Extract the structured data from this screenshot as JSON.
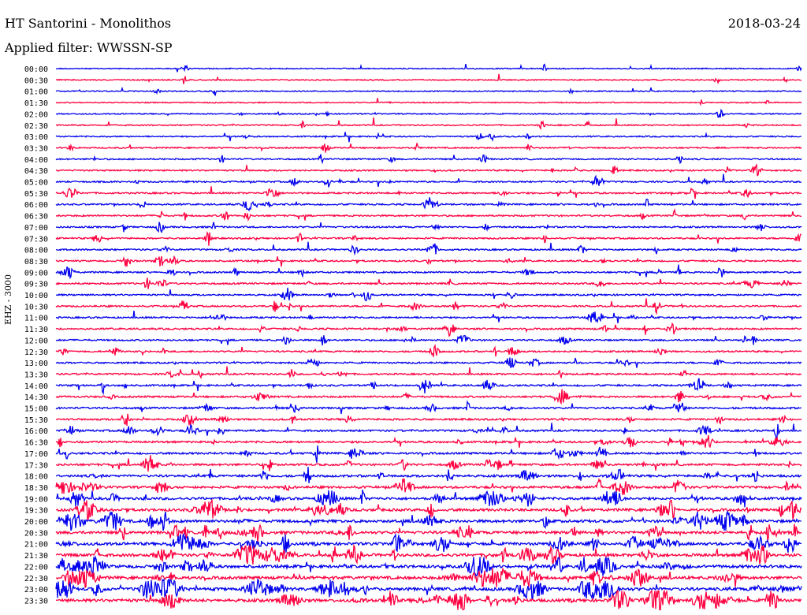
{
  "header": {
    "title": "HT Santorini - Monolithos",
    "date": "2018-03-24",
    "filter": "Applied filter: WWSSN-SP"
  },
  "chart_data": {
    "type": "helicorder",
    "station": "HT Santorini - Monolithos",
    "date": "2018-03-24",
    "filter": "WWSSN-SP",
    "ylabel": "EHZ - 3000",
    "colors": [
      "#0000ee",
      "#ff0040"
    ],
    "rows": [
      {
        "label": "00:00",
        "activity": 0.05
      },
      {
        "label": "00:30",
        "activity": 0.08
      },
      {
        "label": "01:00",
        "activity": 0.05
      },
      {
        "label": "01:30",
        "activity": 0.06
      },
      {
        "label": "02:00",
        "activity": 0.1
      },
      {
        "label": "02:30",
        "activity": 0.12
      },
      {
        "label": "03:00",
        "activity": 0.15
      },
      {
        "label": "03:30",
        "activity": 0.18
      },
      {
        "label": "04:00",
        "activity": 0.2
      },
      {
        "label": "04:30",
        "activity": 0.25
      },
      {
        "label": "05:00",
        "activity": 0.28
      },
      {
        "label": "05:30",
        "activity": 0.32
      },
      {
        "label": "06:00",
        "activity": 0.32
      },
      {
        "label": "06:30",
        "activity": 0.33
      },
      {
        "label": "07:00",
        "activity": 0.3
      },
      {
        "label": "07:30",
        "activity": 0.3
      },
      {
        "label": "08:00",
        "activity": 0.32
      },
      {
        "label": "08:30",
        "activity": 0.3
      },
      {
        "label": "09:00",
        "activity": 0.32
      },
      {
        "label": "09:30",
        "activity": 0.35
      },
      {
        "label": "10:00",
        "activity": 0.3
      },
      {
        "label": "10:30",
        "activity": 0.32
      },
      {
        "label": "11:00",
        "activity": 0.32
      },
      {
        "label": "11:30",
        "activity": 0.33
      },
      {
        "label": "12:00",
        "activity": 0.32
      },
      {
        "label": "12:30",
        "activity": 0.33
      },
      {
        "label": "13:00",
        "activity": 0.32
      },
      {
        "label": "13:30",
        "activity": 0.35
      },
      {
        "label": "14:00",
        "activity": 0.38
      },
      {
        "label": "14:30",
        "activity": 0.38
      },
      {
        "label": "15:00",
        "activity": 0.42
      },
      {
        "label": "15:30",
        "activity": 0.42
      },
      {
        "label": "16:00",
        "activity": 0.45
      },
      {
        "label": "16:30",
        "activity": 0.48
      },
      {
        "label": "17:00",
        "activity": 0.5
      },
      {
        "label": "17:30",
        "activity": 0.55
      },
      {
        "label": "18:00",
        "activity": 0.62
      },
      {
        "label": "18:30",
        "activity": 0.68
      },
      {
        "label": "19:00",
        "activity": 0.75
      },
      {
        "label": "19:30",
        "activity": 0.82
      },
      {
        "label": "20:00",
        "activity": 0.88
      },
      {
        "label": "20:30",
        "activity": 0.92
      },
      {
        "label": "21:00",
        "activity": 0.95
      },
      {
        "label": "21:30",
        "activity": 0.95
      },
      {
        "label": "22:00",
        "activity": 0.97
      },
      {
        "label": "22:30",
        "activity": 0.97
      },
      {
        "label": "23:00",
        "activity": 1.0
      },
      {
        "label": "23:30",
        "activity": 1.0
      }
    ]
  }
}
